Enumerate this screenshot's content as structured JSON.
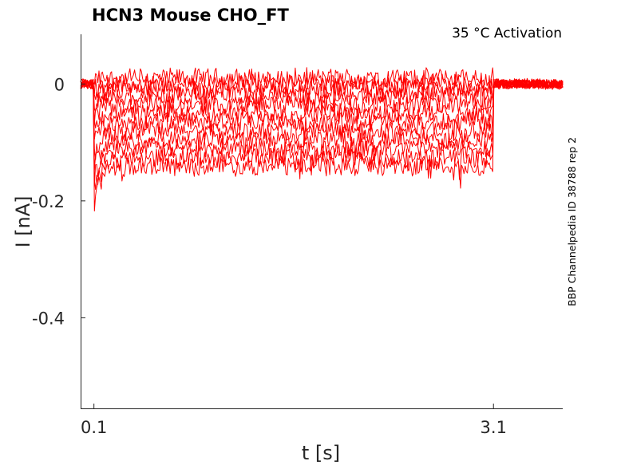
{
  "chart_data": {
    "type": "line",
    "title": "HCN3  Mouse  CHO_FT",
    "condition": "35 °C  Activation",
    "side_label": "BBP Channelpedia ID 38788 rep 2",
    "xlabel": "t [s]",
    "ylabel": "I [nA]",
    "xlim": [
      0.0,
      3.62
    ],
    "ylim": [
      -0.555,
      0.085
    ],
    "xticks": [
      {
        "value": 0.1,
        "label": "0.1"
      },
      {
        "value": 3.1,
        "label": "3.1"
      }
    ],
    "yticks": [
      {
        "value": 0,
        "label": "0"
      },
      {
        "value": -0.2,
        "label": "-0.2"
      },
      {
        "value": -0.4,
        "label": "-0.4"
      }
    ],
    "grid": false,
    "color": "#ff0000",
    "step_on": 0.1,
    "step_off": 3.1,
    "holding_level": 0.0,
    "steady_levels": [
      0.01,
      0.0,
      -0.01,
      -0.02,
      -0.035,
      -0.05,
      -0.065,
      -0.08,
      -0.095,
      -0.11,
      -0.125,
      -0.14
    ],
    "noise_amplitude": 0.012
  }
}
